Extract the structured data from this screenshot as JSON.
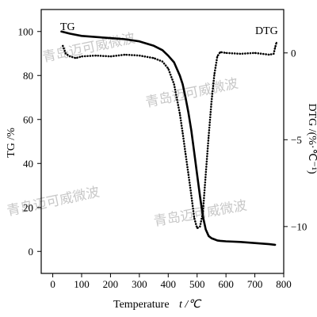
{
  "chart_data": {
    "type": "line",
    "xlabel": "Temperature",
    "xlabel_unit": "t /℃",
    "ylabel": "TG /%",
    "ylabel_right": "DTG /(%·℃⁻¹)",
    "xlim": [
      -40,
      800
    ],
    "ylim": [
      -10,
      110
    ],
    "ylim_right": [
      -12.7,
      2.5
    ],
    "xticks": [
      0,
      100,
      200,
      300,
      400,
      500,
      600,
      700,
      800
    ],
    "yticks": [
      0,
      20,
      40,
      60,
      80,
      100
    ],
    "yticks_right": [
      0,
      -5,
      -10
    ],
    "grid": false,
    "series": [
      {
        "name": "TG",
        "axis": "left",
        "style": "solid",
        "x": [
          30,
          60,
          100,
          150,
          200,
          250,
          300,
          350,
          380,
          400,
          420,
          440,
          450,
          460,
          470,
          480,
          490,
          500,
          510,
          520,
          530,
          540,
          550,
          560,
          570,
          580,
          600,
          650,
          700,
          750,
          770
        ],
        "y": [
          100,
          99,
          98,
          97.5,
          97,
          96.5,
          95.5,
          93.5,
          91.5,
          89,
          86,
          80,
          76,
          70,
          63,
          55,
          45,
          35,
          25,
          16,
          10,
          7,
          6,
          5.5,
          5,
          4.8,
          4.6,
          4.3,
          3.8,
          3.3,
          3
        ]
      },
      {
        "name": "DTG",
        "axis": "right",
        "style": "dotted",
        "x": [
          35,
          45,
          60,
          80,
          100,
          150,
          200,
          250,
          300,
          350,
          380,
          400,
          420,
          440,
          450,
          460,
          470,
          480,
          490,
          500,
          510,
          520,
          530,
          540,
          550,
          560,
          570,
          580,
          600,
          650,
          700,
          750,
          765,
          770,
          775
        ],
        "y": [
          0.4,
          -0.05,
          -0.2,
          -0.3,
          -0.2,
          -0.15,
          -0.2,
          -0.1,
          -0.15,
          -0.3,
          -0.5,
          -0.9,
          -1.8,
          -3.5,
          -4.6,
          -5.8,
          -7.0,
          -8.2,
          -9.5,
          -10.1,
          -10.0,
          -9.2,
          -7.0,
          -4.8,
          -2.8,
          -1.2,
          -0.2,
          0.05,
          0.0,
          -0.05,
          0.0,
          -0.1,
          -0.05,
          0.3,
          0.6
        ]
      }
    ]
  },
  "watermark": {
    "text": "青岛迈可威微波"
  }
}
